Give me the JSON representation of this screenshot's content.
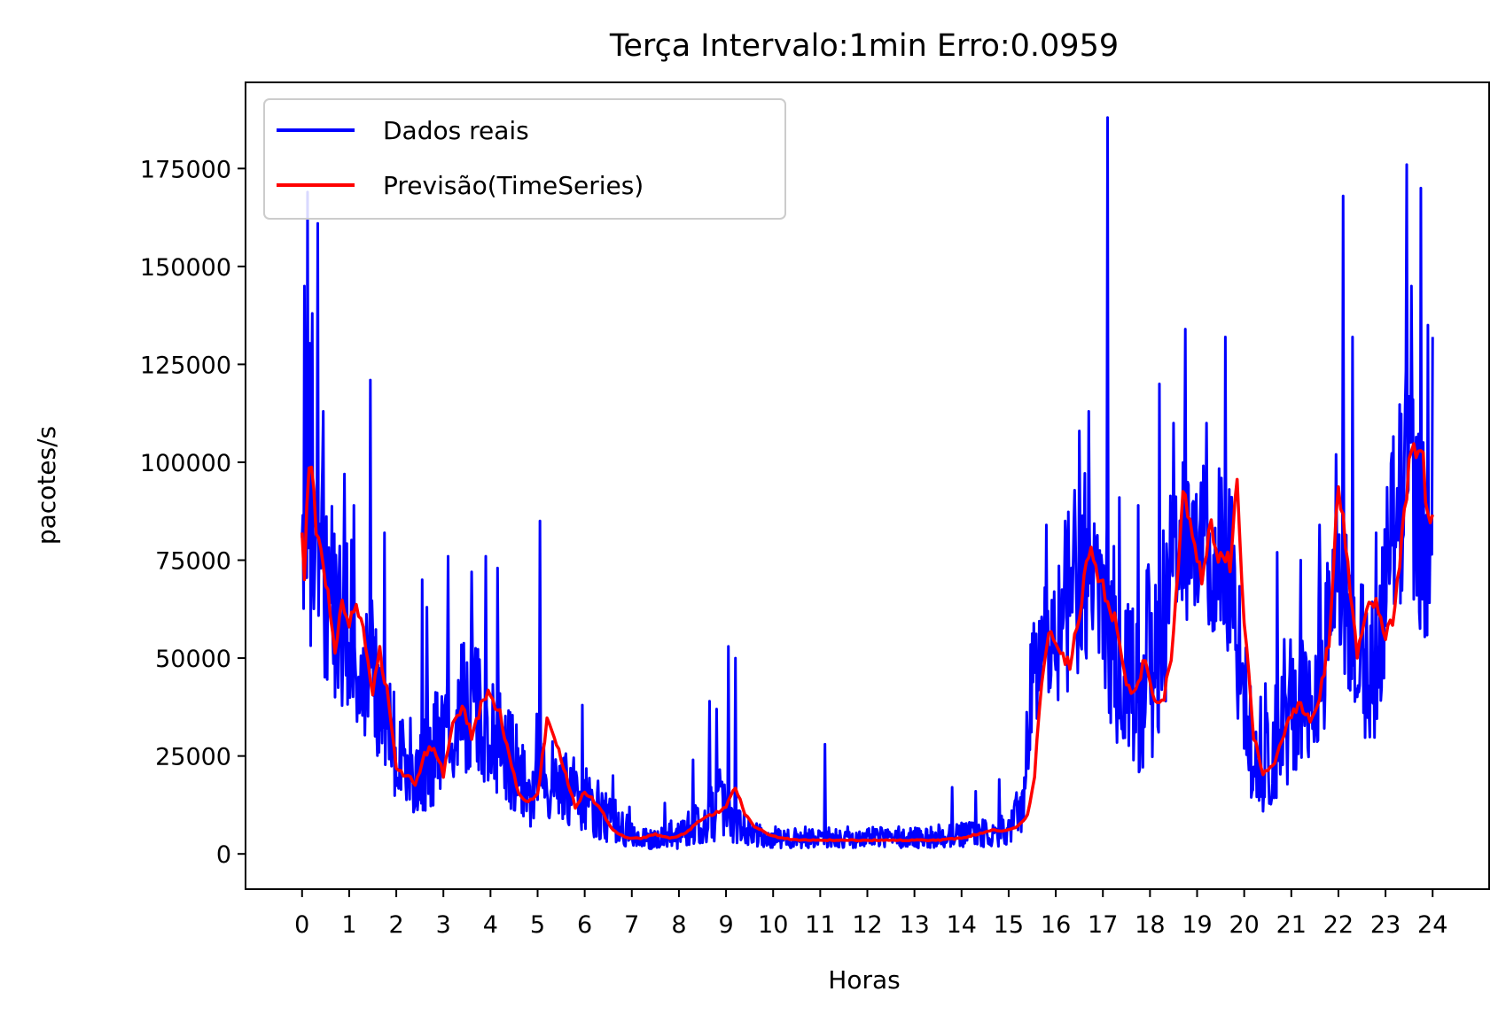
{
  "chart_data": {
    "type": "line",
    "title": "Terça Intervalo:1min Erro:0.0959",
    "xlabel": "Horas",
    "ylabel": "pacotes/s",
    "xlim": [
      -1.2,
      25.2
    ],
    "ylim": [
      -9000,
      197000
    ],
    "xticks": [
      0,
      1,
      2,
      3,
      4,
      5,
      6,
      7,
      8,
      9,
      10,
      11,
      12,
      13,
      14,
      15,
      16,
      17,
      18,
      19,
      20,
      21,
      22,
      23,
      24
    ],
    "xtick_labels": [
      "0",
      "1",
      "2",
      "3",
      "4",
      "5",
      "6",
      "7",
      "8",
      "9",
      "10",
      "11",
      "12",
      "13",
      "14",
      "15",
      "16",
      "17",
      "18",
      "19",
      "20",
      "21",
      "22",
      "23",
      "24"
    ],
    "yticks": [
      0,
      25000,
      50000,
      75000,
      100000,
      125000,
      150000,
      175000
    ],
    "ytick_labels": [
      "0",
      "25000",
      "50000",
      "75000",
      "100000",
      "125000",
      "150000",
      "175000"
    ],
    "grid": false,
    "legend_position": "top-left",
    "series": [
      {
        "name": "Dados reais",
        "color": "#0000ff",
        "envelope": {
          "x": [
            0,
            0.1,
            0.2,
            0.3,
            0.5,
            0.8,
            1.0,
            1.3,
            1.5,
            1.7,
            2.0,
            2.5,
            3.0,
            3.3,
            3.6,
            3.9,
            4.2,
            4.5,
            4.8,
            5.0,
            5.3,
            5.7,
            6.0,
            6.5,
            7.0,
            7.5,
            8.0,
            8.5,
            8.8,
            9.0,
            9.3,
            9.6,
            10.0,
            11.0,
            12.0,
            13.0,
            14.0,
            14.5,
            15.0,
            15.3,
            15.5,
            15.7,
            16.0,
            16.3,
            16.6,
            16.9,
            17.1,
            17.4,
            17.8,
            18.2,
            18.5,
            18.8,
            19.1,
            19.4,
            19.7,
            19.9,
            20.2,
            20.5,
            20.8,
            21.1,
            21.4,
            21.7,
            21.9,
            22.2,
            22.5,
            22.8,
            23.0,
            23.2,
            23.4,
            23.6,
            23.8,
            24.0
          ],
          "high": [
            97000,
            145000,
            125000,
            110000,
            98000,
            88000,
            85000,
            70000,
            65000,
            55000,
            40000,
            35000,
            45000,
            56000,
            55000,
            50000,
            42000,
            35000,
            25000,
            40000,
            30000,
            25000,
            24000,
            16000,
            9000,
            6000,
            10000,
            15000,
            20000,
            25000,
            12000,
            8000,
            7000,
            7000,
            7000,
            7000,
            8000,
            9000,
            10000,
            22000,
            62000,
            68000,
            75000,
            92000,
            98000,
            88000,
            90000,
            75000,
            70000,
            85000,
            100000,
            105000,
            100000,
            100000,
            95000,
            75000,
            43000,
            45000,
            55000,
            55000,
            60000,
            70000,
            95000,
            80000,
            70000,
            65000,
            90000,
            120000,
            130000,
            120000,
            110000,
            105000
          ],
          "low": [
            55000,
            62000,
            50000,
            45000,
            40000,
            38000,
            35000,
            30000,
            25000,
            20000,
            12000,
            10000,
            12000,
            18000,
            20000,
            18000,
            15000,
            10000,
            6000,
            10000,
            8000,
            6000,
            5000,
            3000,
            1500,
            1200,
            1200,
            2000,
            2500,
            3000,
            2500,
            2000,
            1500,
            1500,
            1500,
            1500,
            1500,
            1800,
            2000,
            5000,
            30000,
            38000,
            35000,
            42000,
            48000,
            40000,
            30000,
            25000,
            20000,
            22000,
            55000,
            60000,
            58000,
            55000,
            50000,
            30000,
            8000,
            12000,
            15000,
            20000,
            25000,
            30000,
            55000,
            40000,
            30000,
            28000,
            45000,
            60000,
            65000,
            60000,
            55000,
            52000
          ]
        },
        "spikes": [
          [
            0.05,
            145000
          ],
          [
            0.12,
            169000
          ],
          [
            0.22,
            138000
          ],
          [
            0.33,
            161000
          ],
          [
            0.45,
            113000
          ],
          [
            0.9,
            97000
          ],
          [
            1.1,
            89000
          ],
          [
            1.45,
            121000
          ],
          [
            1.75,
            82000
          ],
          [
            2.55,
            70000
          ],
          [
            2.65,
            63000
          ],
          [
            3.1,
            76000
          ],
          [
            3.6,
            72000
          ],
          [
            3.9,
            76000
          ],
          [
            4.15,
            73000
          ],
          [
            5.05,
            85000
          ],
          [
            5.95,
            38000
          ],
          [
            6.6,
            20000
          ],
          [
            6.95,
            12000
          ],
          [
            7.7,
            13000
          ],
          [
            8.3,
            24000
          ],
          [
            8.65,
            39000
          ],
          [
            8.8,
            37000
          ],
          [
            9.05,
            53000
          ],
          [
            9.2,
            50000
          ],
          [
            11.1,
            28000
          ],
          [
            13.8,
            17000
          ],
          [
            14.3,
            16000
          ],
          [
            14.8,
            19000
          ],
          [
            15.4,
            30000
          ],
          [
            15.8,
            84000
          ],
          [
            16.2,
            85000
          ],
          [
            16.5,
            108000
          ],
          [
            16.7,
            113000
          ],
          [
            17.1,
            188000
          ],
          [
            17.35,
            91000
          ],
          [
            17.75,
            89000
          ],
          [
            18.2,
            120000
          ],
          [
            18.5,
            110000
          ],
          [
            18.75,
            134000
          ],
          [
            19.2,
            110000
          ],
          [
            19.6,
            132000
          ],
          [
            20.7,
            77000
          ],
          [
            21.2,
            75000
          ],
          [
            21.6,
            84000
          ],
          [
            21.95,
            102000
          ],
          [
            22.1,
            168000
          ],
          [
            22.3,
            132000
          ],
          [
            22.8,
            82000
          ],
          [
            23.45,
            176000
          ],
          [
            23.55,
            145000
          ],
          [
            23.75,
            170000
          ],
          [
            23.9,
            135000
          ],
          [
            24.0,
            132000
          ]
        ]
      },
      {
        "name": "Previsão(TimeSeries)",
        "color": "#ff0000",
        "points": {
          "x": [
            0,
            0.05,
            0.12,
            0.2,
            0.3,
            0.4,
            0.55,
            0.7,
            0.85,
            1.0,
            1.15,
            1.3,
            1.5,
            1.65,
            1.8,
            2.0,
            2.2,
            2.4,
            2.6,
            2.8,
            3.0,
            3.2,
            3.4,
            3.6,
            3.8,
            4.0,
            4.2,
            4.4,
            4.6,
            4.8,
            5.0,
            5.2,
            5.4,
            5.6,
            5.8,
            6.0,
            6.3,
            6.6,
            6.9,
            7.2,
            7.5,
            7.8,
            8.1,
            8.4,
            8.7,
            9.0,
            9.2,
            9.4,
            9.6,
            9.9,
            10.2,
            10.6,
            11.0,
            11.5,
            12.0,
            12.5,
            13.0,
            13.5,
            14.0,
            14.3,
            14.6,
            15.0,
            15.2,
            15.4,
            15.55,
            15.7,
            15.9,
            16.1,
            16.3,
            16.5,
            16.7,
            16.9,
            17.1,
            17.3,
            17.5,
            17.7,
            17.9,
            18.1,
            18.3,
            18.5,
            18.7,
            18.9,
            19.1,
            19.3,
            19.5,
            19.7,
            19.85,
            20.0,
            20.2,
            20.4,
            20.6,
            20.8,
            21.0,
            21.2,
            21.4,
            21.6,
            21.8,
            22.0,
            22.2,
            22.4,
            22.6,
            22.8,
            23.0,
            23.2,
            23.35,
            23.5,
            23.65,
            23.8,
            23.9,
            24.0
          ],
          "y": [
            80000,
            70000,
            99000,
            95000,
            85000,
            80000,
            65000,
            50000,
            65000,
            60000,
            62000,
            58000,
            40000,
            52000,
            42000,
            22000,
            20000,
            18000,
            25000,
            28000,
            20000,
            34000,
            38000,
            30000,
            38000,
            41000,
            36000,
            25000,
            15000,
            13000,
            15000,
            34000,
            28000,
            20000,
            12000,
            16000,
            12000,
            6000,
            4000,
            4000,
            5000,
            4000,
            5000,
            8000,
            10000,
            12000,
            17000,
            10000,
            7000,
            5000,
            4000,
            3500,
            3500,
            3500,
            3500,
            3500,
            3500,
            3500,
            4000,
            5000,
            6000,
            6000,
            7000,
            10000,
            20000,
            45000,
            58000,
            50000,
            48000,
            60000,
            78000,
            72000,
            65000,
            58000,
            42000,
            43000,
            50000,
            38000,
            40000,
            55000,
            92000,
            80000,
            70000,
            84000,
            75000,
            75000,
            94000,
            60000,
            30000,
            20000,
            22000,
            30000,
            36000,
            38000,
            35000,
            40000,
            55000,
            95000,
            75000,
            50000,
            62000,
            65000,
            55000,
            62000,
            80000,
            100000,
            105000,
            100000,
            85000,
            90000
          ]
        }
      }
    ]
  }
}
